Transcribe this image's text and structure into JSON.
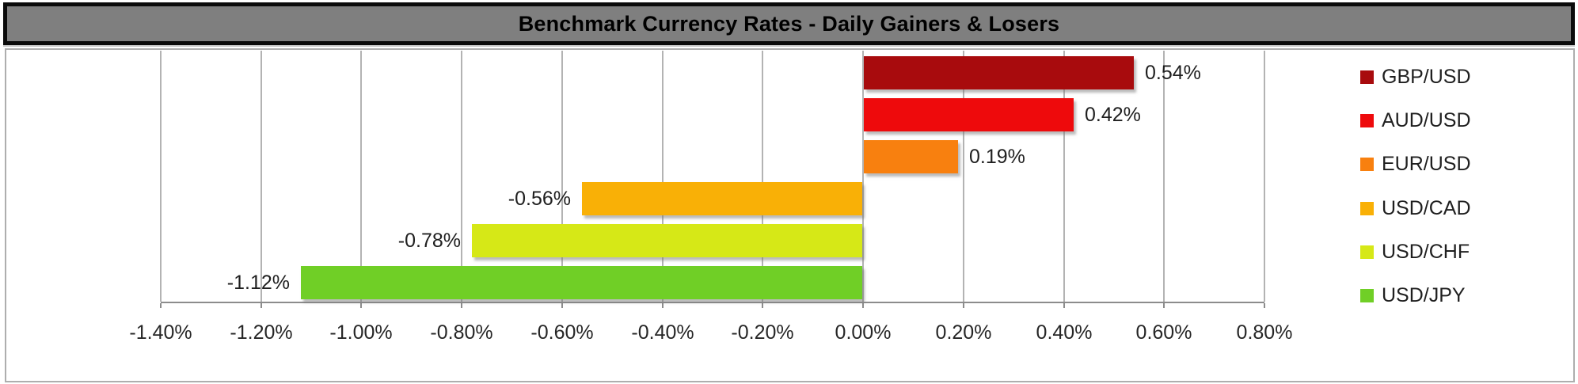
{
  "title_bar": {
    "text": "Benchmark Currency Rates - Daily Gainers & Losers"
  },
  "chart_data": {
    "type": "bar",
    "orientation": "horizontal",
    "title": "Benchmark Currency Rates - Daily Gainers & Losers",
    "series": [
      {
        "name": "GBP/USD",
        "value": 0.54,
        "label": "0.54%",
        "color": "#a80b0d"
      },
      {
        "name": "AUD/USD",
        "value": 0.42,
        "label": "0.42%",
        "color": "#ee0a0c"
      },
      {
        "name": "EUR/USD",
        "value": 0.19,
        "label": "0.19%",
        "color": "#f8800f"
      },
      {
        "name": "USD/CAD",
        "value": -0.56,
        "label": "-0.56%",
        "color": "#f9b006"
      },
      {
        "name": "USD/CHF",
        "value": -0.78,
        "label": "-0.78%",
        "color": "#d6e817"
      },
      {
        "name": "USD/JPY",
        "value": -1.12,
        "label": "-1.12%",
        "color": "#70cf26"
      }
    ],
    "xlabel": "",
    "ylabel": "",
    "xlim": [
      -1.4,
      0.8
    ],
    "tick_step": 0.2,
    "x_ticks": [
      "-1.40%",
      "-1.20%",
      "-1.00%",
      "-0.80%",
      "-0.60%",
      "-0.40%",
      "-0.20%",
      "0.00%",
      "0.20%",
      "0.40%",
      "0.60%",
      "0.80%"
    ],
    "grid": true,
    "legend_position": "right",
    "value_labels": "outside-end"
  },
  "colors": {
    "title_bar_background": "#7f7f7f",
    "title_bar_border": "#0b0b0b",
    "chart_border": "#aeaeae",
    "gridline": "#b3b3b3",
    "axis_line": "#8c8c8c",
    "label_text": "#1f1f1f",
    "background": "#ffffff"
  }
}
